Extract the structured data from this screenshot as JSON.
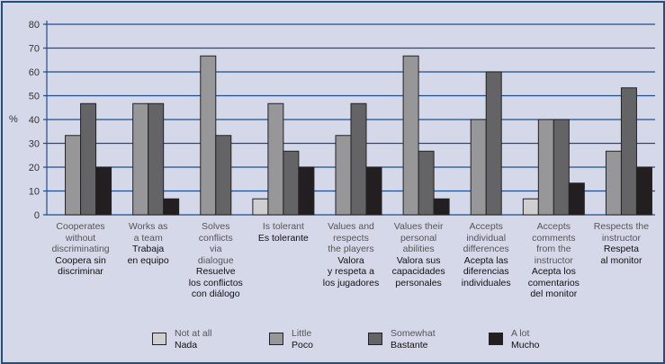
{
  "chart_data": {
    "type": "bar",
    "ylabel": "%",
    "ylim": [
      0,
      80
    ],
    "yticks": [
      0,
      10,
      20,
      30,
      40,
      50,
      60,
      70,
      80
    ],
    "grid": true,
    "legend_position": "bottom",
    "categories": [
      {
        "en": [
          "Cooperates",
          "without",
          "discriminating"
        ],
        "es": [
          "Coopera sin",
          "discriminar"
        ]
      },
      {
        "en": [
          "Works as",
          "a team"
        ],
        "es": [
          "Trabaja",
          "en equipo"
        ]
      },
      {
        "en": [
          "Solves",
          "conflicts",
          "via",
          "dialogue"
        ],
        "es": [
          "Resuelve",
          "los conflictos",
          "con diálogo"
        ]
      },
      {
        "en": [
          "Is tolerant"
        ],
        "es": [
          "Es tolerante"
        ]
      },
      {
        "en": [
          "Values and",
          "respects",
          "the players"
        ],
        "es": [
          "Valora",
          "y respeta a",
          "los jugadores"
        ]
      },
      {
        "en": [
          "Values their",
          "personal",
          "abilities"
        ],
        "es": [
          "Valora sus",
          "capacidades",
          "personales"
        ]
      },
      {
        "en": [
          "Accepts",
          "individual",
          "differences"
        ],
        "es": [
          "Acepta las",
          "diferencias",
          "individuales"
        ]
      },
      {
        "en": [
          "Accepts",
          "comments",
          "from the",
          "instructor"
        ],
        "es": [
          "Acepta los",
          "comentarios",
          "del monitor"
        ]
      },
      {
        "en": [
          "Respects the",
          "instructor"
        ],
        "es": [
          "Respeta",
          "al monitor"
        ]
      }
    ],
    "series": [
      {
        "name": "Not at all",
        "name_es": "Nada",
        "color": "#cfcfd1",
        "values": [
          0,
          0,
          0,
          6.7,
          0,
          0,
          0,
          6.7,
          0
        ]
      },
      {
        "name": "Little",
        "name_es": "Poco",
        "color": "#97979a",
        "values": [
          33.3,
          46.7,
          66.7,
          46.7,
          33.3,
          66.7,
          40,
          40,
          26.7
        ]
      },
      {
        "name": "Somewhat",
        "name_es": "Bastante",
        "color": "#646466",
        "values": [
          46.7,
          46.7,
          33.3,
          26.7,
          46.7,
          26.7,
          60,
          40,
          53.3
        ]
      },
      {
        "name": "A lot",
        "name_es": "Mucho",
        "color": "#231f20",
        "values": [
          20,
          6.7,
          0,
          20,
          20,
          6.7,
          0,
          13.3,
          20
        ]
      }
    ]
  }
}
